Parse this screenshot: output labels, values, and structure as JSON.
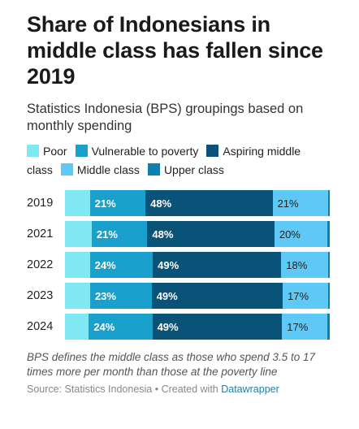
{
  "header": {
    "title": "Share of Indonesians in middle class has fallen since 2019",
    "subtitle": "Statistics Indonesia (BPS) groupings based on monthly spending"
  },
  "footer": {
    "note": "BPS defines the middle class as those who spend 3.5 to 17 times more per month than those at the poverty line",
    "source_prefix": "Source: Statistics Indonesia • Created with ",
    "source_link": "Datawrapper"
  },
  "chart_data": {
    "type": "bar",
    "stacked": true,
    "orientation": "horizontal",
    "normalized_to": 100,
    "categories": [
      "2019",
      "2021",
      "2022",
      "2023",
      "2024"
    ],
    "series": [
      {
        "name": "Poor",
        "color": "#7fe8f3",
        "values": [
          9.4,
          10.1,
          9.5,
          9.4,
          9.0
        ],
        "labels": [
          "",
          "",
          "",
          "",
          ""
        ]
      },
      {
        "name": "Vulnerable to poverty",
        "color": "#1aa0cd",
        "values": [
          21,
          21,
          24,
          23,
          24
        ],
        "labels": [
          "21%",
          "21%",
          "24%",
          "23%",
          "24%"
        ]
      },
      {
        "name": "Aspiring middle class",
        "color": "#0a5378",
        "values": [
          48,
          48,
          49,
          49,
          49
        ],
        "labels": [
          "48%",
          "48%",
          "49%",
          "49%",
          "49%"
        ]
      },
      {
        "name": "Middle class",
        "color": "#5ec8f6",
        "values": [
          21,
          20,
          18,
          17,
          17
        ],
        "labels": [
          "21%",
          "20%",
          "18%",
          "17%",
          "17%"
        ]
      },
      {
        "name": "Upper class",
        "color": "#0f7fb0",
        "values": [
          0.6,
          0.9,
          0.5,
          0.6,
          1.0
        ],
        "labels": [
          "",
          "",
          "",
          "",
          ""
        ]
      }
    ],
    "label_style": {
      "Poor": "light",
      "Vulnerable to poverty": "dark",
      "Aspiring middle class": "dark",
      "Middle class": "light",
      "Upper class": "dark"
    },
    "legend_position": "top"
  }
}
